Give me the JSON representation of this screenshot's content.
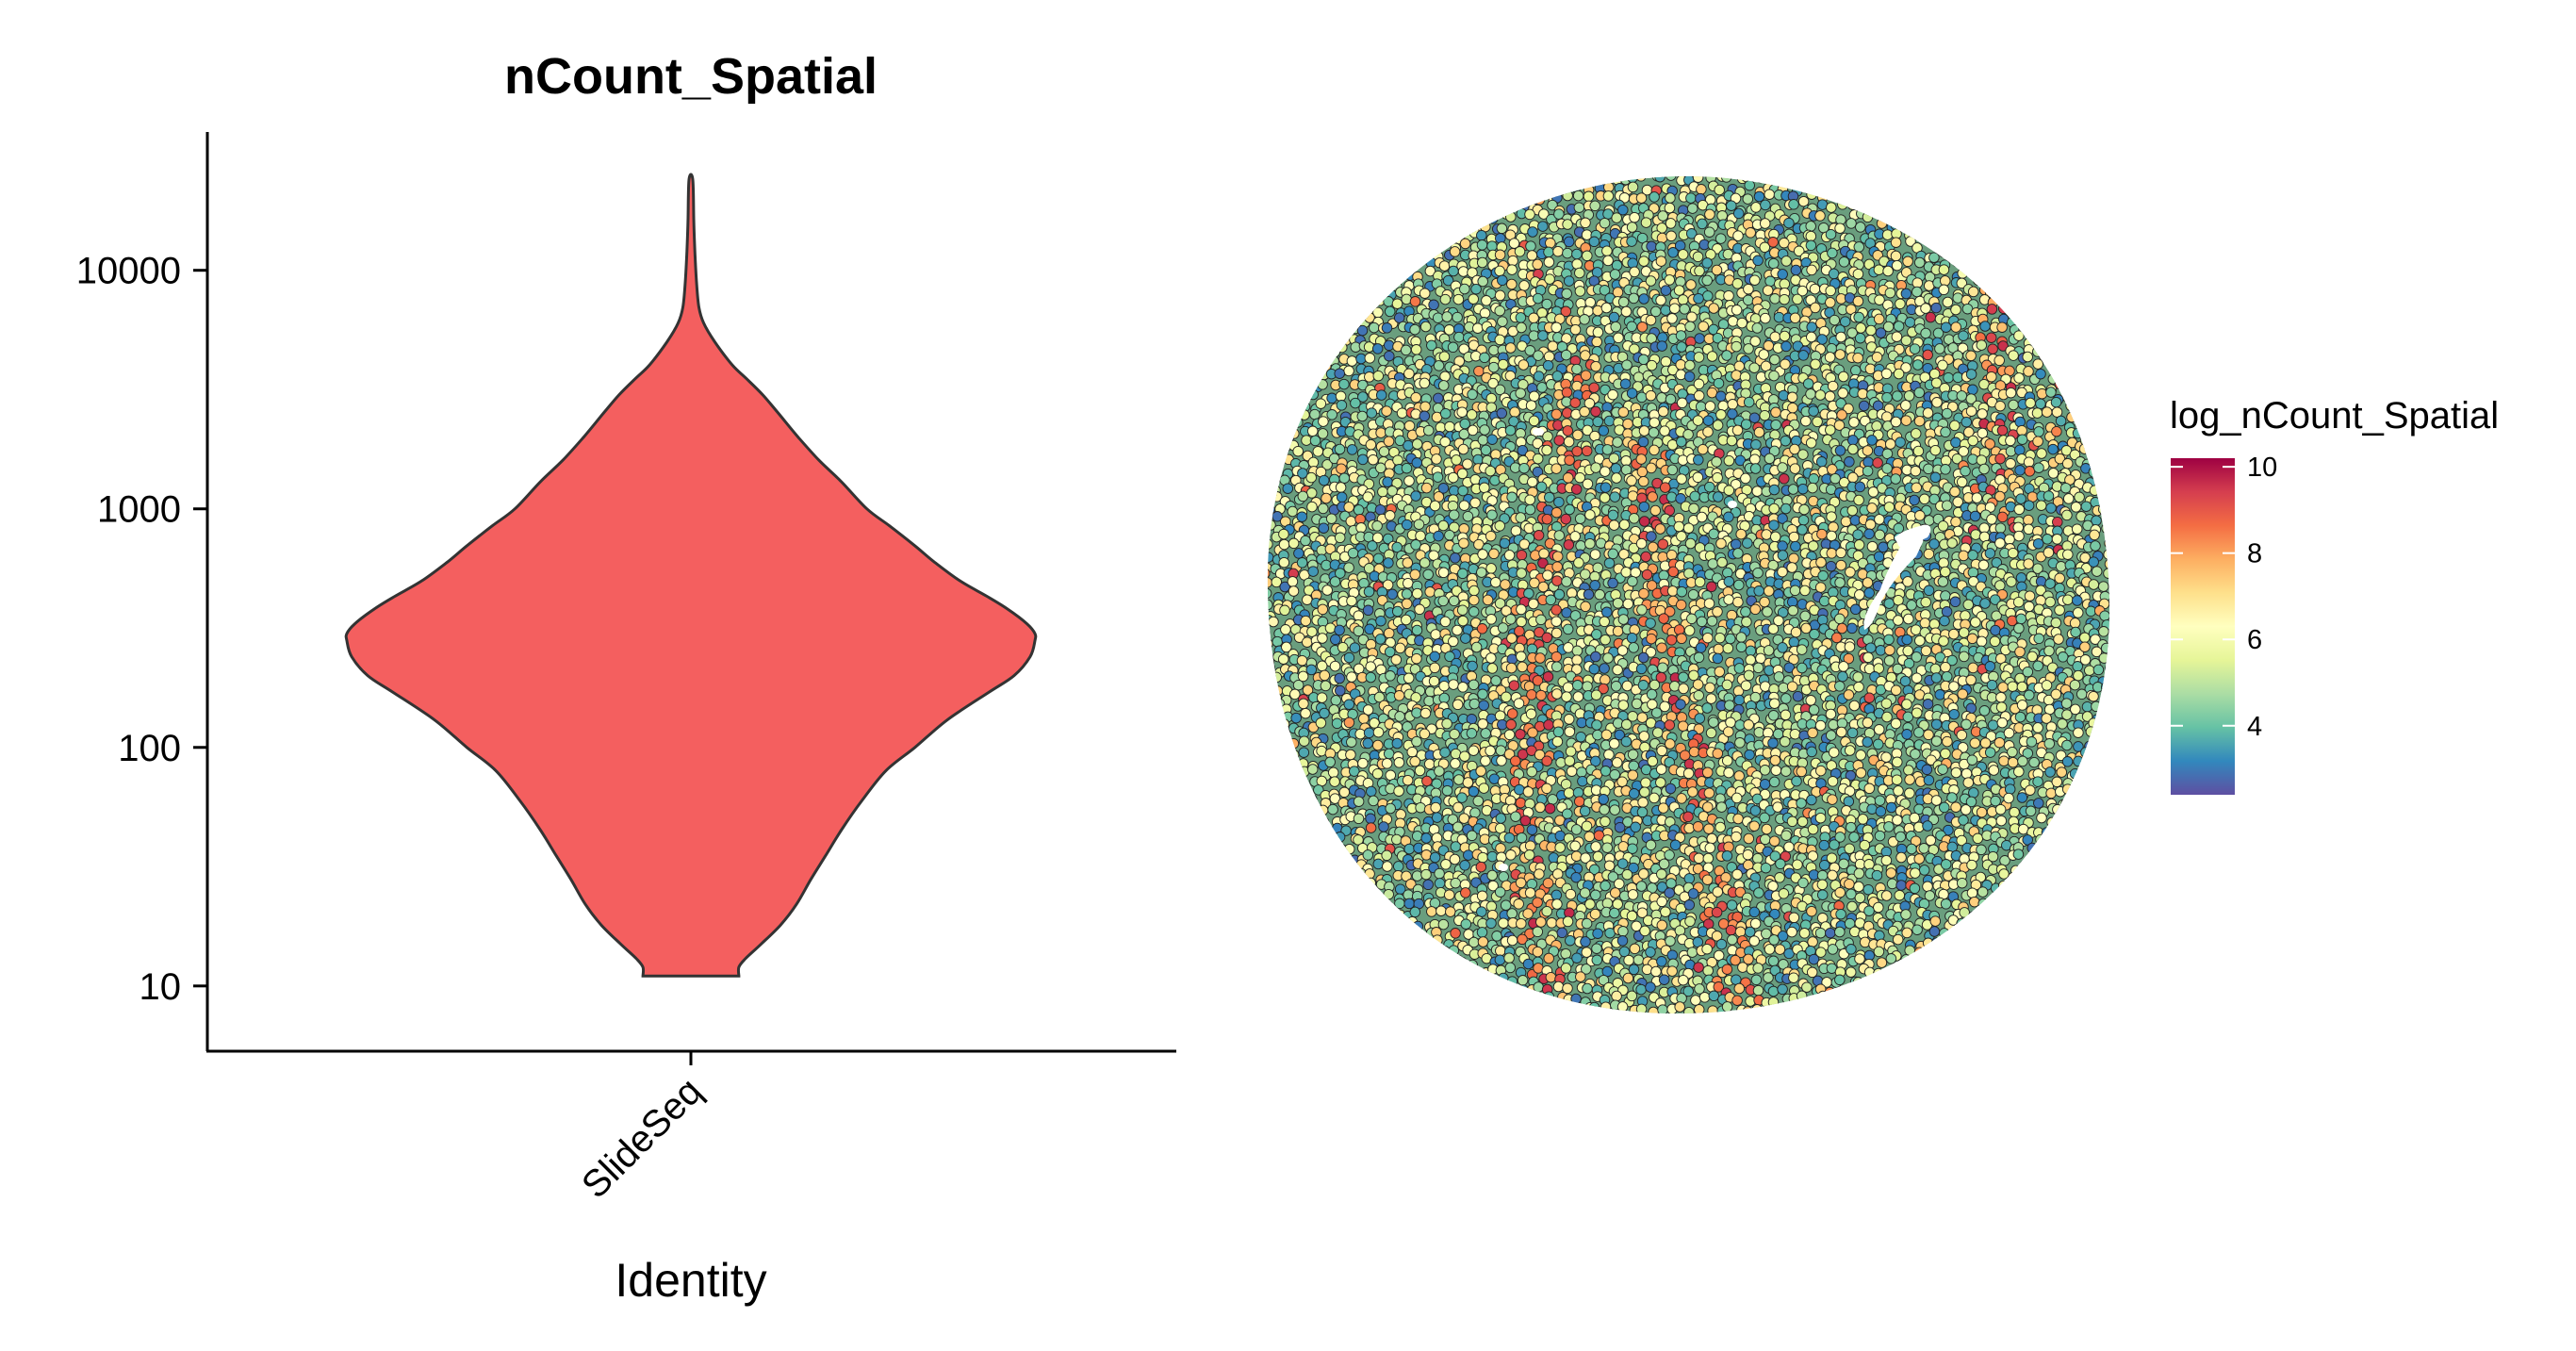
{
  "chart_data": [
    {
      "type": "violin",
      "title": "nCount_Spatial",
      "xlabel": "Identity",
      "ylabel": "",
      "categories": [
        "SlideSeq"
      ],
      "y_scale": "log10",
      "y_ticks": [
        10,
        100,
        1000,
        10000
      ],
      "y_tick_labels": [
        "10",
        "100",
        "1000",
        "10000"
      ],
      "ylim": [
        7,
        38000
      ],
      "fill_color": "#f45f5f",
      "outline_color": "#333333",
      "density_profile": {
        "y": [
          11,
          12,
          13,
          15,
          18,
          22,
          28,
          35,
          45,
          60,
          80,
          100,
          130,
          170,
          200,
          240,
          280,
          300,
          330,
          380,
          430,
          500,
          600,
          700,
          850,
          1000,
          1300,
          1600,
          2000,
          2500,
          3000,
          3500,
          4000,
          5000,
          6000,
          7000,
          9000,
          12000,
          16000,
          24000
        ],
        "relative_width": [
          0.3,
          0.3,
          0.34,
          0.44,
          0.56,
          0.66,
          0.75,
          0.84,
          0.94,
          1.07,
          1.22,
          1.4,
          1.6,
          1.86,
          2.02,
          2.12,
          2.15,
          2.15,
          2.1,
          1.98,
          1.85,
          1.68,
          1.52,
          1.4,
          1.24,
          1.1,
          0.94,
          0.8,
          0.67,
          0.55,
          0.45,
          0.35,
          0.26,
          0.15,
          0.08,
          0.05,
          0.035,
          0.025,
          0.018,
          0.012
        ]
      }
    },
    {
      "type": "scatter",
      "subtype": "spatial_feature_plot",
      "title": "",
      "color_variable": "log_nCount_Spatial",
      "legend_placement": "right",
      "color_range": [
        2.4,
        10.2
      ],
      "colorbar_ticks": [
        4,
        6,
        8,
        10
      ],
      "colorbar_tick_labels": [
        "4",
        "6",
        "8",
        "10"
      ],
      "palette": [
        "#5e4fa2",
        "#3288bd",
        "#66c2a5",
        "#abdda4",
        "#e6f598",
        "#ffffbf",
        "#fee08b",
        "#fdae61",
        "#f46d43",
        "#d53e4f",
        "#9e0142"
      ],
      "point_outline_color": "#222222",
      "notes_visible": ""
    }
  ]
}
